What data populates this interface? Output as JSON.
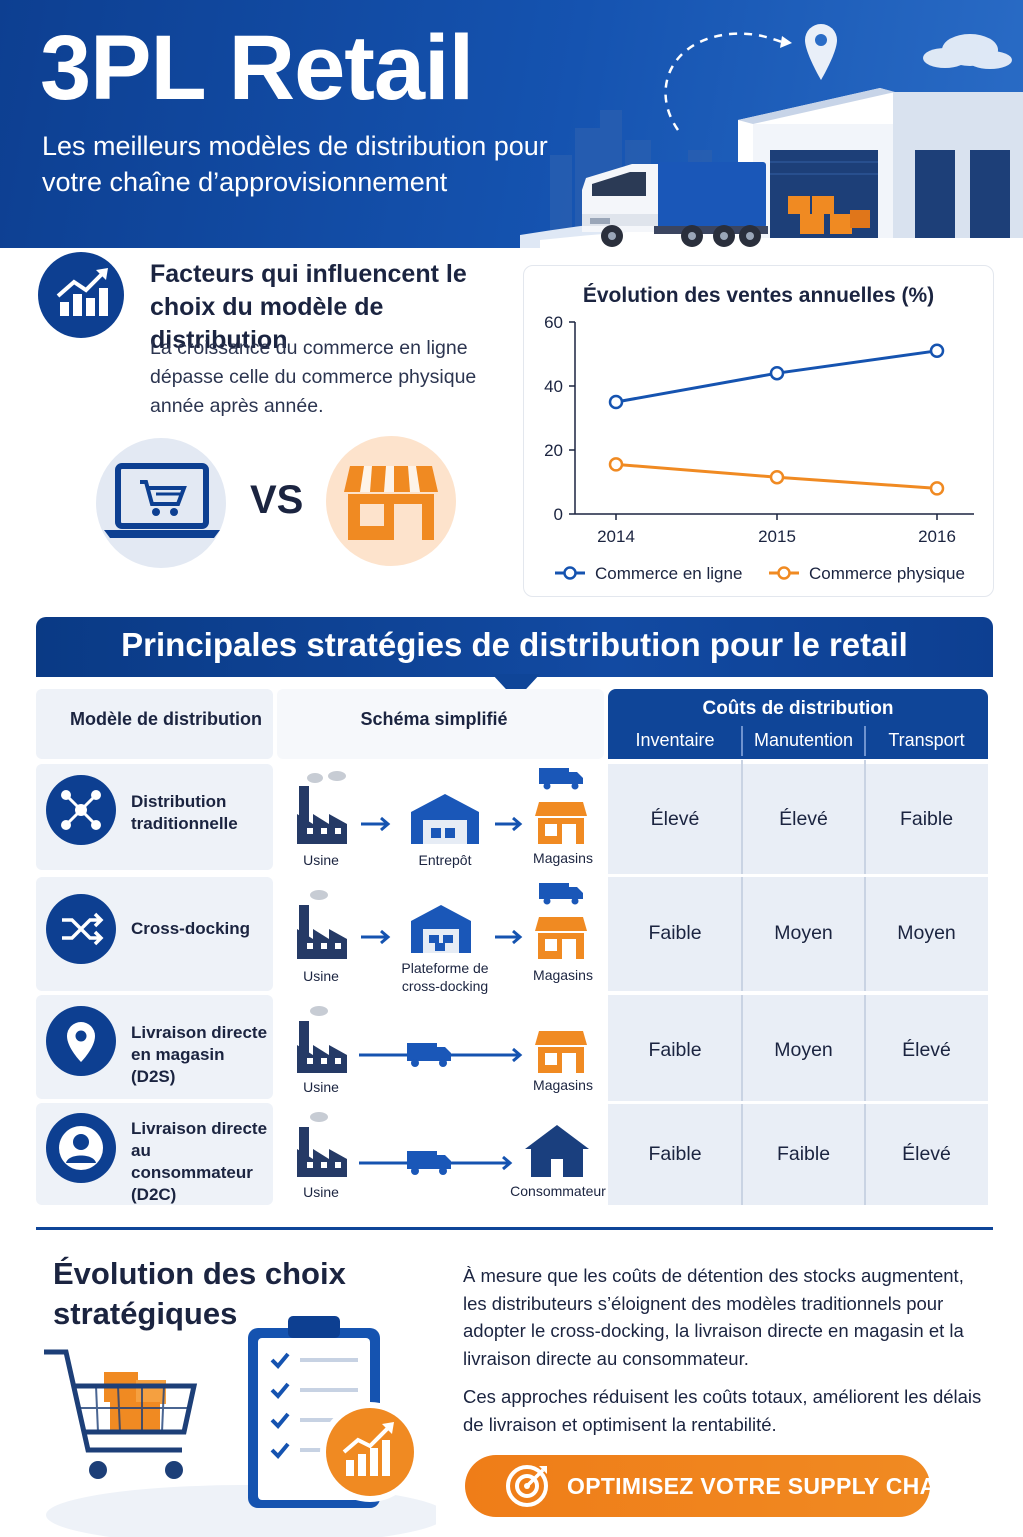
{
  "header": {
    "title": "3PL Retail",
    "subtitle": "Les meilleurs modèles de distribution pour votre chaîne d’approvisionnement"
  },
  "factors": {
    "title": "Facteurs qui influencent le choix du modèle de distribution",
    "description": "La croissance du commerce en ligne dépasse celle du commerce physique année après année.",
    "vs": "VS",
    "icons": [
      "chart-growth-icon",
      "laptop-cart-icon",
      "store-icon"
    ]
  },
  "chart_data": {
    "type": "line",
    "title": "Évolution des ventes annuelles (%)",
    "x": [
      "2014",
      "2015",
      "2016"
    ],
    "ylim": [
      0,
      60
    ],
    "yticks": [
      "0",
      "20",
      "40",
      "60"
    ],
    "grid": false,
    "legend": "bottom",
    "series": [
      {
        "name": "Commerce en ligne",
        "values": [
          35,
          44,
          51
        ],
        "color": "#1553b0"
      },
      {
        "name": "Commerce physique",
        "values": [
          15.5,
          11.5,
          8
        ],
        "color": "#f08a22"
      }
    ]
  },
  "strategies": {
    "banner": "Principales stratégies de distribution pour le retail",
    "col_model": "Modèle de distribution",
    "col_schema": "Schéma simplifié",
    "col_costs": "Coûts de distribution",
    "cost_cols": [
      "Inventaire",
      "Manutention",
      "Transport"
    ],
    "rows": [
      {
        "label": "Distribution traditionnelle",
        "icon": "network-icon",
        "nodes": [
          "Usine",
          "Entrepôt",
          "Magasins"
        ],
        "costs": [
          "Élevé",
          "Élevé",
          "Faible"
        ]
      },
      {
        "label": "Cross-docking",
        "icon": "shuffle-icon",
        "nodes": [
          "Usine",
          "Plateforme de cross-docking",
          "Magasins"
        ],
        "costs": [
          "Faible",
          "Moyen",
          "Moyen"
        ]
      },
      {
        "label": "Livraison directe en magasin (D2S)",
        "icon": "location-pin-icon",
        "nodes": [
          "Usine",
          "Magasins"
        ],
        "costs": [
          "Faible",
          "Moyen",
          "Élevé"
        ]
      },
      {
        "label": "Livraison directe au consommateur (D2C)",
        "icon": "user-icon",
        "nodes": [
          "Usine",
          "Consommateur"
        ],
        "costs": [
          "Faible",
          "Faible",
          "Élevé"
        ]
      }
    ]
  },
  "evolution": {
    "title": "Évolution des choix stratégiques",
    "p1": "À mesure que les coûts de détention des stocks augmentent, les distributeurs s’éloignent des modèles traditionnels pour adopter le cross-docking, la livraison directe en magasin et la livraison directe au consommateur.",
    "p2": "Ces approches réduisent les coûts totaux, améliorent les délais de livraison et optimisent la rentabilité.",
    "cta": "OPTIMISEZ VOTRE SUPPLY CHAIN"
  },
  "colors": {
    "navy": "#0d3f91",
    "blue": "#1553b0",
    "orange": "#f08a22",
    "light": "#eef2f8"
  }
}
